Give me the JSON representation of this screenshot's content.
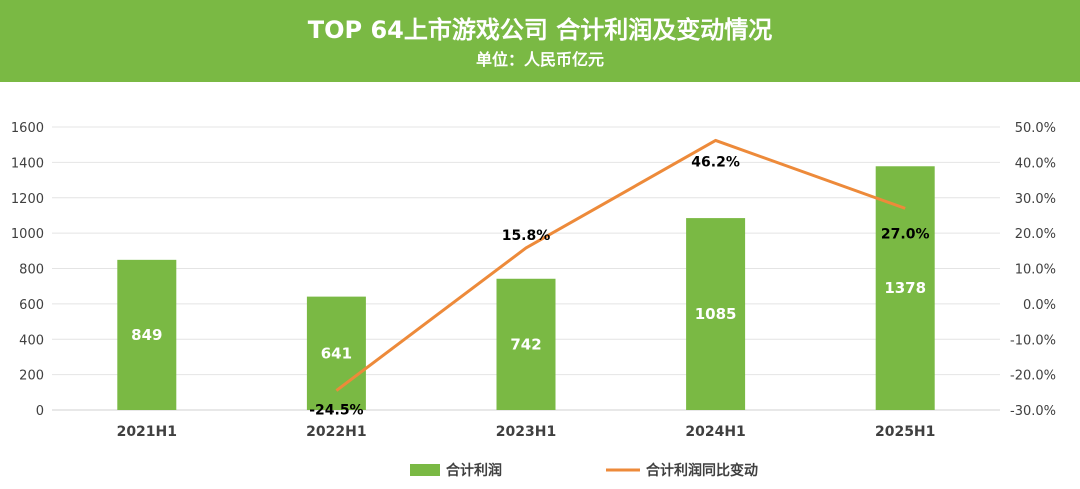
{
  "chart_data": {
    "type": "bar",
    "title": "TOP 64上市游戏公司 合计利润及变动情况",
    "subtitle": "单位：人民币亿元",
    "categories": [
      "2021H1",
      "2022H1",
      "2023H1",
      "2024H1",
      "2025H1"
    ],
    "series": [
      {
        "name": "合计利润",
        "type": "bar",
        "axis": "left",
        "values": [
          849,
          641,
          742,
          1085,
          1378
        ],
        "labels": [
          "849",
          "641",
          "742",
          "1085",
          "1378"
        ],
        "color": "#7ab944"
      },
      {
        "name": "合计利润同比变动",
        "type": "line",
        "axis": "right",
        "values": [
          null,
          -24.5,
          15.8,
          46.2,
          27.0
        ],
        "labels": [
          "",
          "-24.5%",
          "15.8%",
          "46.2%",
          "27.0%"
        ],
        "color": "#ed8a3a"
      }
    ],
    "ylim": [
      0,
      1600
    ],
    "yticks": [
      "0",
      "200",
      "400",
      "600",
      "800",
      "1000",
      "1200",
      "1400",
      "1600"
    ],
    "y2lim": [
      -30,
      50
    ],
    "y2ticks": [
      "-30.0%",
      "-20.0%",
      "-10.0%",
      "0.0%",
      "10.0%",
      "20.0%",
      "30.0%",
      "40.0%",
      "50.0%"
    ],
    "grid": true,
    "legend": "bottom"
  }
}
